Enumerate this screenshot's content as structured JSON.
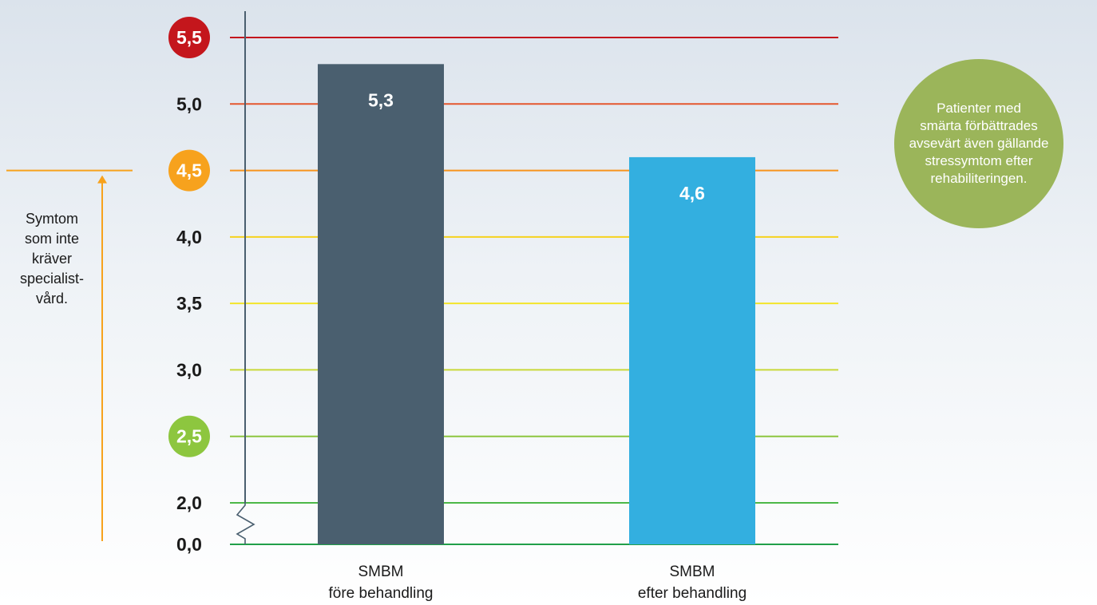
{
  "chart_data": {
    "type": "bar",
    "categories": [
      "SMBM\nföre behandling",
      "SMBM\nefter behandling"
    ],
    "values": [
      5.3,
      4.6
    ],
    "value_labels": [
      "5,3",
      "4,6"
    ],
    "bar_colors": [
      "#4a5f6f",
      "#33afe0"
    ],
    "ylim": [
      2.0,
      5.5
    ],
    "axis_break": true,
    "title": "",
    "xlabel": "",
    "ylabel": "",
    "grid": true,
    "ticks": [
      {
        "value": 0.0,
        "label": "0,0",
        "line_color": "#22a04a",
        "badge": null
      },
      {
        "value": 2.0,
        "label": "2,0",
        "line_color": "#4cb848",
        "badge": null
      },
      {
        "value": 2.5,
        "label": "2,5",
        "line_color": "#8dc63f",
        "badge": "#8dc63f"
      },
      {
        "value": 3.0,
        "label": "3,0",
        "line_color": "#c9d93a",
        "badge": null
      },
      {
        "value": 3.5,
        "label": "3,5",
        "line_color": "#f3e52a",
        "badge": null
      },
      {
        "value": 4.0,
        "label": "4,0",
        "line_color": "#f6d21e",
        "badge": null
      },
      {
        "value": 4.5,
        "label": "4,5",
        "line_color": "#f7941d",
        "badge": "#f7a21d"
      },
      {
        "value": 5.0,
        "label": "5,0",
        "line_color": "#e4572e",
        "badge": null
      },
      {
        "value": 5.5,
        "label": "5,5",
        "line_color": "#c4161c",
        "badge": "#c4161c"
      }
    ],
    "threshold": {
      "value": 4.5,
      "color": "#f7a21d",
      "label": "Symtom\nsom inte\nkräver\nspecialist-\nvård."
    }
  },
  "callout": {
    "text": "Patienter med\nsmärta förbättrades\navsevärt även gällande\nstressymtom efter\nrehabiliteringen.",
    "color": "#9bb55a"
  },
  "colors": {
    "axis": "#4a5f6f",
    "text": "#1a1a1a"
  }
}
